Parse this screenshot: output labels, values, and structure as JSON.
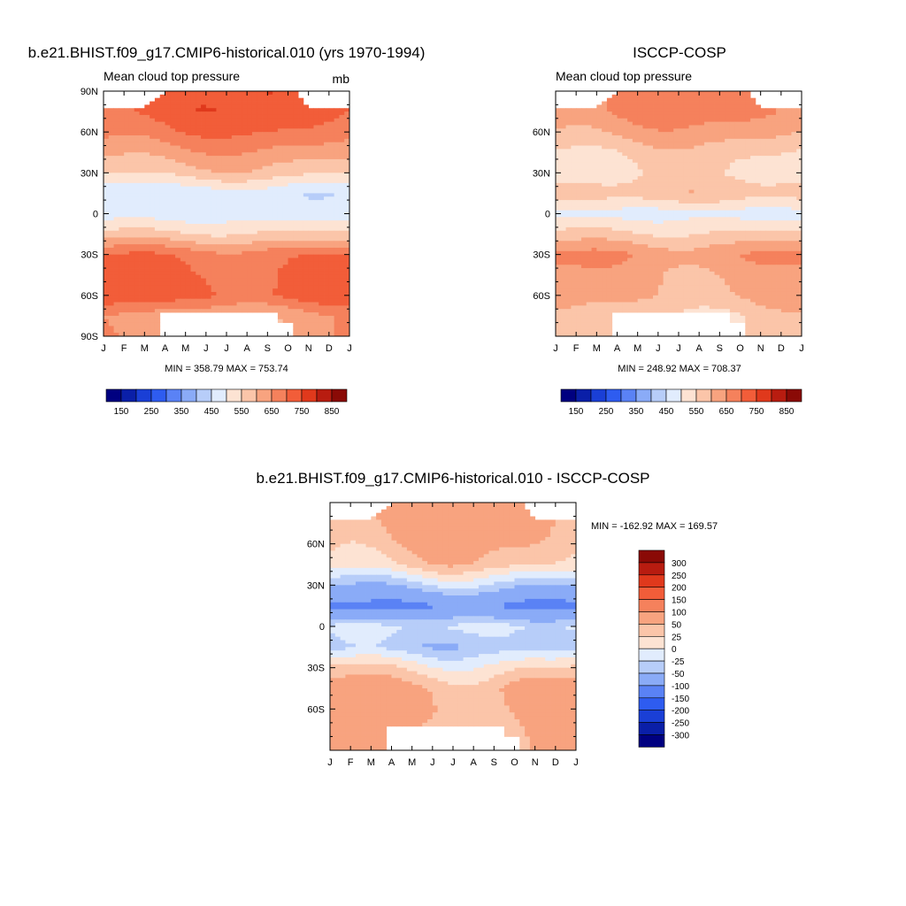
{
  "colors": {
    "abs_scale": [
      "#000080",
      "#0a1fa8",
      "#1a3fd6",
      "#2e5cf0",
      "#5a82f5",
      "#8aabf7",
      "#b7cdf9",
      "#e1ecfd",
      "#fde3d3",
      "#fbc5a9",
      "#f8a37f",
      "#f5815c",
      "#f25d39",
      "#e0391c",
      "#b81c10",
      "#8a0a06"
    ],
    "diff_scale": [
      "#8a0a06",
      "#b81c10",
      "#e0391c",
      "#f25d39",
      "#f5815c",
      "#f8a37f",
      "#fbc5a9",
      "#fde3d3",
      "#e1ecfd",
      "#b7cdf9",
      "#8aabf7",
      "#5a82f5",
      "#2e5cf0",
      "#1a3fd6",
      "#0a1fa8",
      "#000080"
    ]
  },
  "months": [
    "J",
    "F",
    "M",
    "A",
    "M",
    "J",
    "J",
    "A",
    "S",
    "O",
    "N",
    "D",
    "J"
  ],
  "panels": {
    "model": {
      "title": "b.e21.BHIST.f09_g17.CMIP6-historical.010 (yrs 1970-1994)",
      "left_label": "Mean cloud top pressure",
      "units": "mb",
      "lat_labels": [
        "90N",
        "60N",
        "30N",
        "0",
        "30S",
        "60S",
        "90S"
      ],
      "stats": "MIN = 358.79 MAX = 753.74",
      "colorbar_labels": [
        "150",
        "250",
        "350",
        "450",
        "550",
        "650",
        "750",
        "850"
      ]
    },
    "obs": {
      "title": "ISCCP-COSP",
      "left_label": "Mean cloud top pressure",
      "lat_labels": [
        "60N",
        "30N",
        "0",
        "30S",
        "60S"
      ],
      "stats": "MIN = 248.92 MAX = 708.37",
      "colorbar_labels": [
        "150",
        "250",
        "350",
        "450",
        "550",
        "650",
        "750",
        "850"
      ]
    },
    "diff": {
      "title": "b.e21.BHIST.f09_g17.CMIP6-historical.010 - ISCCP-COSP",
      "lat_labels": [
        "60N",
        "30N",
        "0",
        "30S",
        "60S"
      ],
      "stats": "MIN = -162.92 MAX = 169.57",
      "colorbar_labels": [
        "300",
        "250",
        "200",
        "150",
        "100",
        "50",
        "25",
        "0",
        "-25",
        "-50",
        "-100",
        "-150",
        "-200",
        "-250",
        "-300"
      ]
    }
  },
  "chart_data": [
    {
      "type": "heatmap",
      "title": "b.e21.BHIST.f09_g17.CMIP6-historical.010 (yrs 1970-1994)",
      "variable": "Mean cloud top pressure",
      "units": "mb",
      "x": [
        "J",
        "F",
        "M",
        "A",
        "M",
        "J",
        "J",
        "A",
        "S",
        "O",
        "N",
        "D",
        "J"
      ],
      "y_range": [
        -90,
        90
      ],
      "min": 358.79,
      "max": 753.74,
      "levels": [
        150,
        200,
        250,
        300,
        350,
        400,
        450,
        500,
        550,
        600,
        650,
        700,
        750,
        800,
        850
      ],
      "zonal_profile": {
        "lat": [
          75,
          60,
          45,
          30,
          15,
          0,
          -15,
          -30,
          -45,
          -60,
          -75
        ],
        "value": [
          730,
          690,
          630,
          570,
          460,
          470,
          560,
          690,
          710,
          720,
          620
        ]
      }
    },
    {
      "type": "heatmap",
      "title": "ISCCP-COSP",
      "variable": "Mean cloud top pressure",
      "y_range": [
        -90,
        90
      ],
      "min": 248.92,
      "max": 708.37,
      "levels": [
        150,
        200,
        250,
        300,
        350,
        400,
        450,
        500,
        550,
        600,
        650,
        700,
        750,
        800,
        850
      ],
      "zonal_profile": {
        "lat": [
          75,
          60,
          45,
          30,
          15,
          0,
          -15,
          -30,
          -45,
          -60,
          -75
        ],
        "value": [
          660,
          620,
          560,
          540,
          580,
          480,
          560,
          650,
          620,
          610,
          560
        ]
      }
    },
    {
      "type": "heatmap",
      "title": "b.e21.BHIST.f09_g17.CMIP6-historical.010 - ISCCP-COSP",
      "y_range": [
        -90,
        90
      ],
      "min": -162.92,
      "max": 169.57,
      "levels": [
        -300,
        -250,
        -200,
        -150,
        -100,
        -50,
        -25,
        0,
        25,
        50,
        100,
        150,
        200,
        250,
        300
      ],
      "zonal_profile": {
        "lat": [
          75,
          60,
          45,
          30,
          15,
          0,
          -15,
          -30,
          -45,
          -60,
          -75
        ],
        "value": [
          60,
          50,
          30,
          -40,
          -110,
          -20,
          -40,
          20,
          60,
          60,
          50
        ]
      }
    }
  ]
}
